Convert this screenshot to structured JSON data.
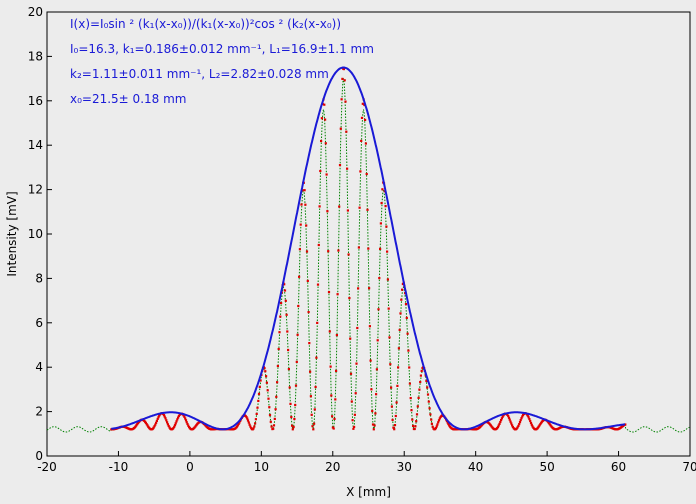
{
  "chart_data": {
    "type": "scatter",
    "xlabel": "X [mm]",
    "ylabel": "Intensity [mV]",
    "xlim": [
      -20,
      70
    ],
    "ylim": [
      0,
      20
    ],
    "xticks": [
      -20,
      -10,
      0,
      10,
      20,
      30,
      40,
      50,
      60,
      70
    ],
    "yticks": [
      0,
      2,
      4,
      6,
      8,
      10,
      12,
      14,
      16,
      18,
      20
    ],
    "grid": false,
    "annotations": [
      "I(x)=I₀sin ² (k₁(x-x₀))/(k₁(x-x₀))²cos ² (k₂(x-x₀))",
      "I₀=16.3,  k₁=0.186±0.012 mm⁻¹,   L₁=16.9±1.1 mm",
      "k₂=1.11±0.011 mm⁻¹,   L₂=2.82±0.028 mm",
      "x₀=21.5±  0.18 mm"
    ],
    "model": {
      "I0": 16.3,
      "k1": 0.186,
      "k2": 1.11,
      "x0": 21.5,
      "background": 1.2
    },
    "series": [
      {
        "kind": "fit",
        "color": "#1a1ad6",
        "x_range": [
          -11,
          61
        ],
        "description": "envelope"
      },
      {
        "kind": "points",
        "color": "#e00000",
        "x_range": [
          -11,
          61
        ]
      },
      {
        "kind": "line",
        "color": "#008000",
        "x_range": [
          -20,
          70
        ]
      }
    ]
  }
}
